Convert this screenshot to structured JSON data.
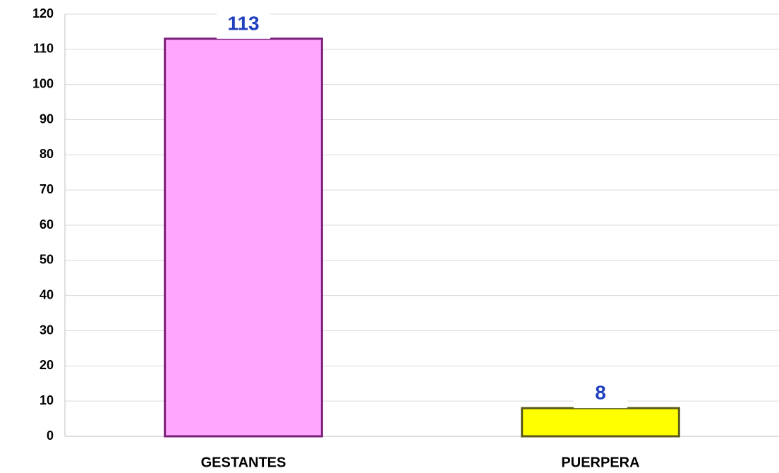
{
  "chart_data": {
    "type": "bar",
    "categories": [
      "GESTANTES",
      "PUERPERA"
    ],
    "values": [
      113,
      8
    ],
    "colors": [
      "#ffa6ff",
      "#ffff00"
    ],
    "edge_colors": [
      "#7a1f7a",
      "#5a5a1a"
    ],
    "ylim": [
      0,
      120
    ],
    "yticks": [
      0,
      10,
      20,
      30,
      40,
      50,
      60,
      70,
      80,
      90,
      100,
      110,
      120
    ],
    "grid": true
  }
}
